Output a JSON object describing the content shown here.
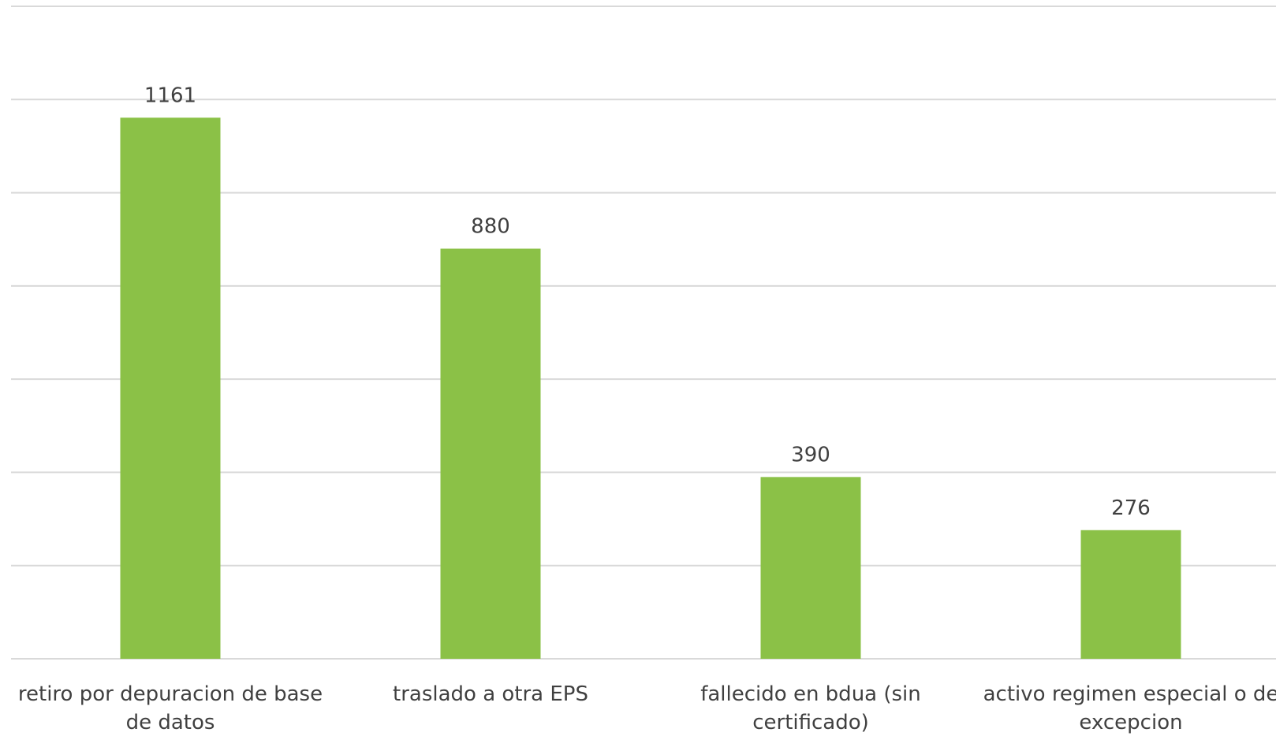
{
  "chart_data": {
    "type": "bar",
    "categories": [
      [
        "retiro por depuracion de base",
        "de datos"
      ],
      [
        "traslado a otra EPS"
      ],
      [
        "fallecido en bdua (sin",
        "certificado)"
      ],
      [
        "activo regimen especial o de",
        "excepcion"
      ]
    ],
    "values": [
      1161,
      880,
      390,
      276
    ],
    "data_labels": [
      "1161",
      "880",
      "390",
      "276"
    ],
    "title": "",
    "xlabel": "",
    "ylabel": "",
    "ylim": [
      0,
      1400
    ],
    "y_gridline_step": 200,
    "grid": true,
    "legend": "none",
    "bar_color": "#8bc147",
    "gridline_color": "#d9d9d9",
    "text_color": "#404040"
  }
}
